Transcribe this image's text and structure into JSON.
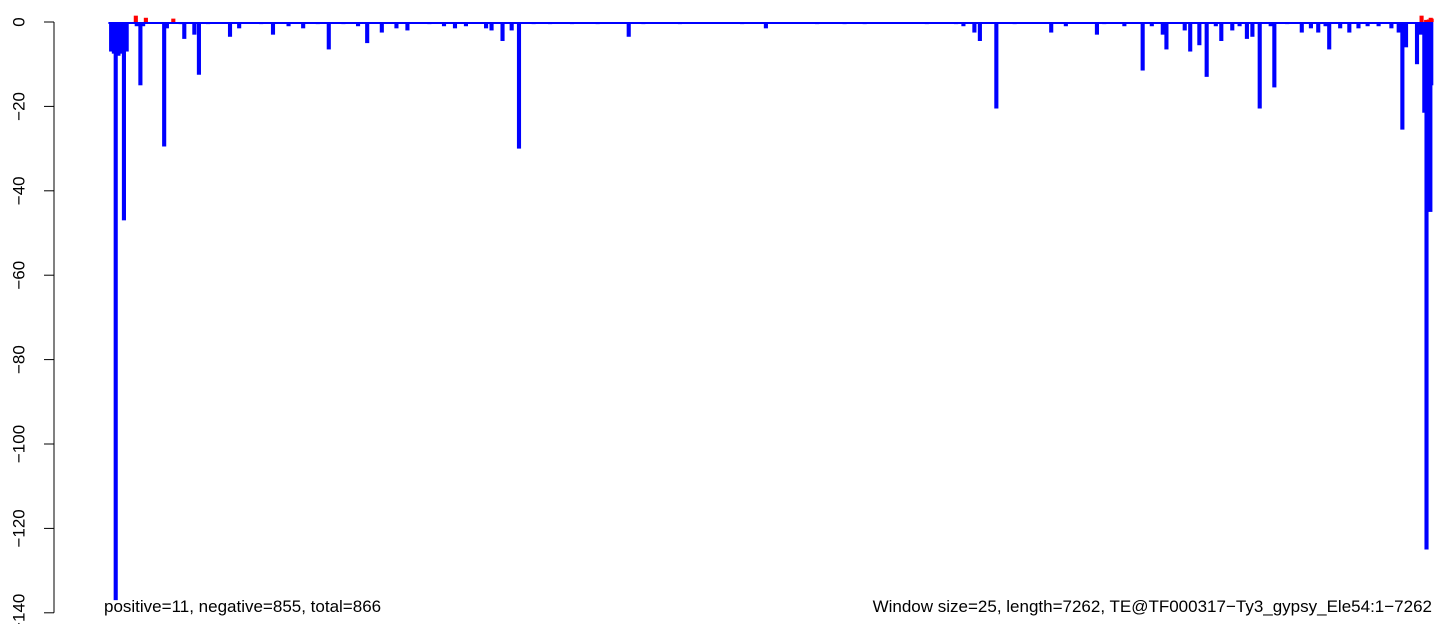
{
  "chart_data": {
    "type": "bar",
    "title": "",
    "xlabel": "",
    "ylabel": "",
    "ylim": [
      -140,
      2
    ],
    "y_ticks": [
      0,
      -20,
      -40,
      -60,
      -80,
      -100,
      -120,
      -140
    ],
    "y_tick_labels": [
      "0",
      "−20",
      "−40",
      "−60",
      "−80",
      "−100",
      "−120",
      "−140"
    ],
    "grid": false,
    "legend": "none",
    "colors": {
      "positive": "#ff0000",
      "negative": "#0000ff"
    },
    "x_range": [
      1,
      7262
    ],
    "window_size": 25,
    "negative_bars": [
      {
        "x": 40,
        "y": -7
      },
      {
        "x": 55,
        "y": -7.5
      },
      {
        "x": 65,
        "y": -137
      },
      {
        "x": 80,
        "y": -8
      },
      {
        "x": 95,
        "y": -7.5
      },
      {
        "x": 110,
        "y": -47
      },
      {
        "x": 125,
        "y": -7
      },
      {
        "x": 180,
        "y": -1
      },
      {
        "x": 200,
        "y": -15
      },
      {
        "x": 215,
        "y": -1
      },
      {
        "x": 330,
        "y": -29.5
      },
      {
        "x": 345,
        "y": -1.5
      },
      {
        "x": 420,
        "y": -0.5
      },
      {
        "x": 440,
        "y": -4
      },
      {
        "x": 495,
        "y": -3
      },
      {
        "x": 520,
        "y": -12.5
      },
      {
        "x": 570,
        "y": -0.5
      },
      {
        "x": 690,
        "y": -3.5
      },
      {
        "x": 740,
        "y": -1.5
      },
      {
        "x": 860,
        "y": -0.5
      },
      {
        "x": 925,
        "y": -3
      },
      {
        "x": 1010,
        "y": -1
      },
      {
        "x": 1090,
        "y": -1.5
      },
      {
        "x": 1170,
        "y": -0.5
      },
      {
        "x": 1230,
        "y": -6.5
      },
      {
        "x": 1310,
        "y": -0.5
      },
      {
        "x": 1390,
        "y": -1
      },
      {
        "x": 1440,
        "y": -5
      },
      {
        "x": 1520,
        "y": -2.5
      },
      {
        "x": 1600,
        "y": -1.5
      },
      {
        "x": 1660,
        "y": -2
      },
      {
        "x": 1780,
        "y": -0.5
      },
      {
        "x": 1860,
        "y": -1
      },
      {
        "x": 1920,
        "y": -1.5
      },
      {
        "x": 1980,
        "y": -1
      },
      {
        "x": 2090,
        "y": -1.5
      },
      {
        "x": 2120,
        "y": -2
      },
      {
        "x": 2180,
        "y": -4.5
      },
      {
        "x": 2230,
        "y": -2
      },
      {
        "x": 2270,
        "y": -30
      },
      {
        "x": 2350,
        "y": -0.5
      },
      {
        "x": 2440,
        "y": -0.5
      },
      {
        "x": 2560,
        "y": -0.5
      },
      {
        "x": 2700,
        "y": -0.5
      },
      {
        "x": 2870,
        "y": -3.5
      },
      {
        "x": 2950,
        "y": -0.5
      },
      {
        "x": 3150,
        "y": -0.5
      },
      {
        "x": 3490,
        "y": -0.5
      },
      {
        "x": 3620,
        "y": -1.5
      },
      {
        "x": 3900,
        "y": -0.5
      },
      {
        "x": 4050,
        "y": -0.5
      },
      {
        "x": 4160,
        "y": -0.5
      },
      {
        "x": 4500,
        "y": -0.5
      },
      {
        "x": 4660,
        "y": -0.5
      },
      {
        "x": 4700,
        "y": -1
      },
      {
        "x": 4760,
        "y": -2.5
      },
      {
        "x": 4790,
        "y": -4.5
      },
      {
        "x": 4880,
        "y": -20.5
      },
      {
        "x": 4980,
        "y": -0.5
      },
      {
        "x": 5180,
        "y": -2.5
      },
      {
        "x": 5260,
        "y": -1
      },
      {
        "x": 5430,
        "y": -3
      },
      {
        "x": 5470,
        "y": -0.5
      },
      {
        "x": 5580,
        "y": -1
      },
      {
        "x": 5680,
        "y": -11.5
      },
      {
        "x": 5730,
        "y": -1
      },
      {
        "x": 5790,
        "y": -3
      },
      {
        "x": 5810,
        "y": -6.5
      },
      {
        "x": 5910,
        "y": -2
      },
      {
        "x": 5940,
        "y": -7
      },
      {
        "x": 5990,
        "y": -5.5
      },
      {
        "x": 6030,
        "y": -13
      },
      {
        "x": 6080,
        "y": -1
      },
      {
        "x": 6110,
        "y": -4.5
      },
      {
        "x": 6170,
        "y": -2
      },
      {
        "x": 6210,
        "y": -1
      },
      {
        "x": 6250,
        "y": -4
      },
      {
        "x": 6280,
        "y": -3.5
      },
      {
        "x": 6320,
        "y": -20.5
      },
      {
        "x": 6380,
        "y": -1
      },
      {
        "x": 6400,
        "y": -15.5
      },
      {
        "x": 6470,
        "y": -0.5
      },
      {
        "x": 6550,
        "y": -2.5
      },
      {
        "x": 6600,
        "y": -1.5
      },
      {
        "x": 6640,
        "y": -2.5
      },
      {
        "x": 6680,
        "y": -1
      },
      {
        "x": 6700,
        "y": -6.5
      },
      {
        "x": 6760,
        "y": -1.5
      },
      {
        "x": 6810,
        "y": -2.5
      },
      {
        "x": 6860,
        "y": -1.5
      },
      {
        "x": 6910,
        "y": -1
      },
      {
        "x": 6970,
        "y": -1
      },
      {
        "x": 7040,
        "y": -1.5
      },
      {
        "x": 7080,
        "y": -2.5
      },
      {
        "x": 7100,
        "y": -25.5
      },
      {
        "x": 7120,
        "y": -6
      },
      {
        "x": 7180,
        "y": -10
      },
      {
        "x": 7200,
        "y": -3
      },
      {
        "x": 7220,
        "y": -21.5
      },
      {
        "x": 7232,
        "y": -125
      },
      {
        "x": 7244,
        "y": -10
      },
      {
        "x": 7253,
        "y": -45
      }
    ],
    "negative_baseline_run": [
      {
        "from": 25,
        "to": 7262,
        "y": -0.3
      }
    ],
    "negative_tail_bars": [
      {
        "x": 7258,
        "y": -15
      }
    ],
    "positive_bars": [
      {
        "x": 175,
        "y": 1.5
      },
      {
        "x": 230,
        "y": 1
      },
      {
        "x": 380,
        "y": 0.8
      },
      {
        "x": 7205,
        "y": 1.5
      },
      {
        "x": 7230,
        "y": 0.5
      },
      {
        "x": 7245,
        "y": 0.6
      },
      {
        "x": 7255,
        "y": 1
      },
      {
        "x": 7260,
        "y": 0.8
      }
    ],
    "footer_left": "positive=11, negative=855, total=866",
    "footer_right": "Window size=25, length=7262, TE@TF000317−Ty3_gypsy_Ele54:1−7262"
  }
}
